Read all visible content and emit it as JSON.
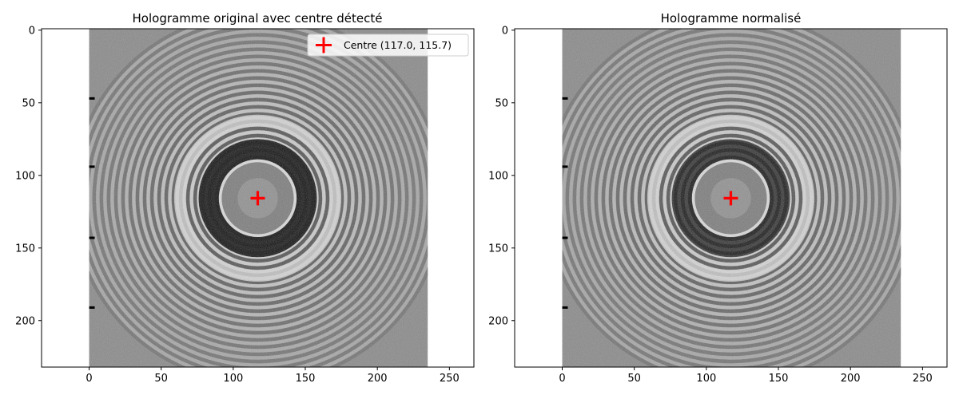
{
  "chart_data": [
    {
      "type": "heatmap",
      "title": "Hologramme original avec centre détecté",
      "colormap": "gray",
      "image_extent": {
        "x": [
          0,
          235
        ],
        "y": [
          0,
          235
        ]
      },
      "xlim": [
        -33,
        267
      ],
      "ylim": [
        232,
        -1
      ],
      "x_ticks": [
        0,
        50,
        100,
        150,
        200,
        250
      ],
      "y_ticks": [
        0,
        50,
        100,
        150,
        200
      ],
      "marker": {
        "x": 117.0,
        "y": 115.7,
        "symbol": "+",
        "color": "#ff0000"
      },
      "left_edge_marks_y": [
        47,
        94,
        143,
        191
      ],
      "legend": {
        "label": "Centre (117.0, 115.7)",
        "placement": "top-right"
      },
      "xlabel": "",
      "ylabel": ""
    },
    {
      "type": "heatmap",
      "title": "Hologramme normalisé",
      "colormap": "gray",
      "image_extent": {
        "x": [
          0,
          235
        ],
        "y": [
          0,
          235
        ]
      },
      "xlim": [
        -33,
        267
      ],
      "ylim": [
        232,
        -1
      ],
      "x_ticks": [
        0,
        50,
        100,
        150,
        200,
        250
      ],
      "y_ticks": [
        0,
        50,
        100,
        150,
        200
      ],
      "marker": {
        "x": 117.0,
        "y": 115.7,
        "symbol": "+",
        "color": "#ff0000"
      },
      "left_edge_marks_y": [
        47,
        94,
        143,
        191
      ],
      "xlabel": "",
      "ylabel": ""
    }
  ]
}
